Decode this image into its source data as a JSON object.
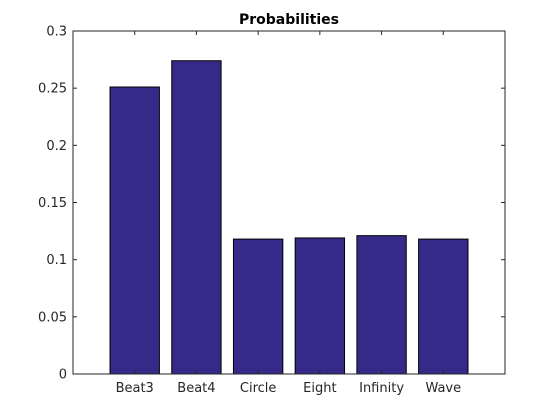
{
  "chart_data": {
    "type": "bar",
    "title": "Probabilities",
    "xlabel": "",
    "ylabel": "",
    "categories": [
      "Beat3",
      "Beat4",
      "Circle",
      "Eight",
      "Infinity",
      "Wave"
    ],
    "values": [
      0.251,
      0.274,
      0.118,
      0.119,
      0.121,
      0.118
    ],
    "ylim": [
      0,
      0.3
    ],
    "yticks": [
      0,
      0.05,
      0.1,
      0.15,
      0.2,
      0.25,
      0.3
    ],
    "ytick_labels": [
      "0",
      "0.05",
      "0.1",
      "0.15",
      "0.2",
      "0.25",
      "0.3"
    ],
    "grid": false,
    "legend": "none",
    "bar_color": "#352a87",
    "bar_edge_color": "#000000"
  }
}
